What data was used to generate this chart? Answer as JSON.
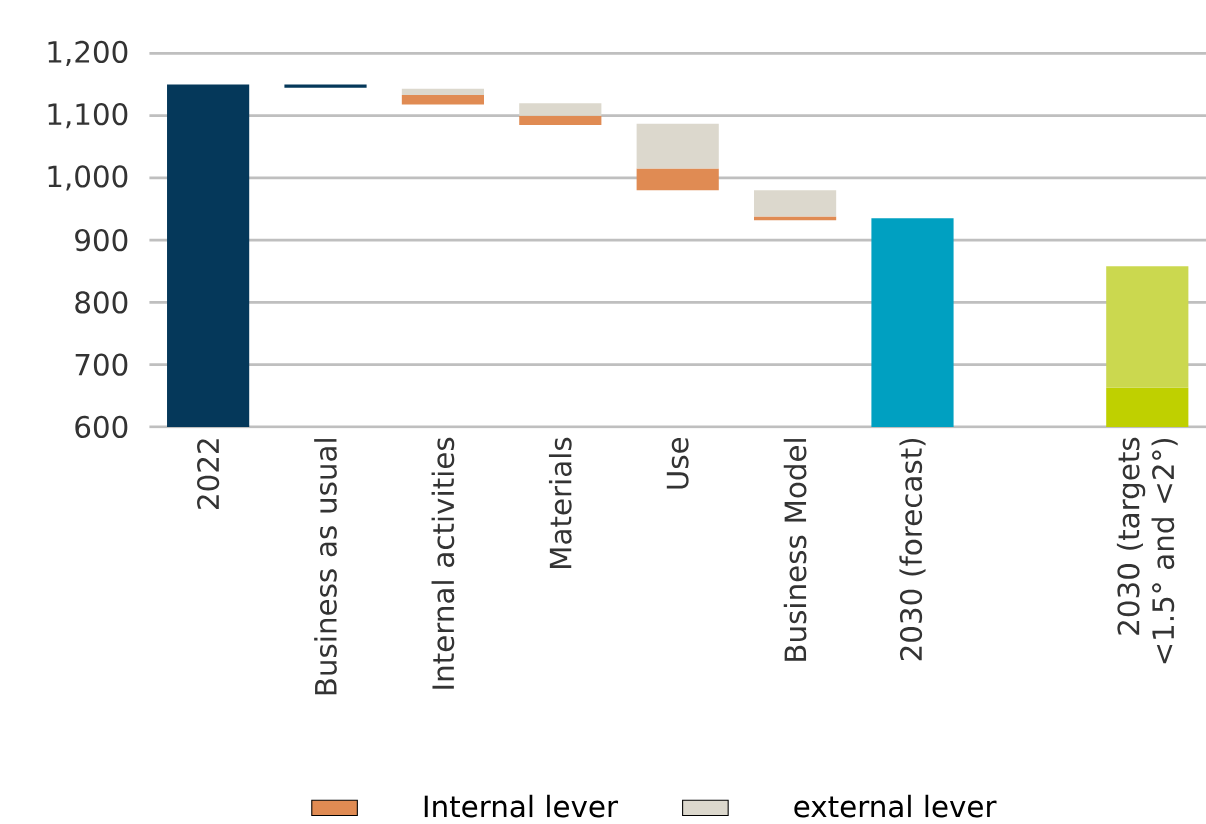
{
  "chart_data": {
    "type": "bar",
    "categories": [
      "2022",
      "Business as usual",
      "Internal activities",
      "Materials",
      "Use",
      "Business Model",
      "2030 (forecast)",
      null,
      "2030 (targets <1.5° and <2°)"
    ],
    "series": [
      {
        "color": "#05385a",
        "values": [
          1150,
          5,
          null,
          null,
          null,
          null,
          null,
          null,
          null
        ],
        "base": [
          null,
          1145,
          null,
          null,
          null,
          null,
          null,
          null,
          null
        ]
      },
      {
        "name": "Internal lever",
        "color": "#e08b53",
        "values": [
          null,
          null,
          15,
          15,
          35,
          6,
          null,
          null,
          null
        ],
        "base": [
          null,
          null,
          1118,
          1085,
          980,
          932,
          null,
          null,
          null
        ]
      },
      {
        "name": "external lever",
        "color": "#dcd8cd",
        "values": [
          null,
          null,
          10,
          20,
          72,
          42,
          null,
          null,
          null
        ],
        "base": [
          null,
          null,
          1133,
          1100,
          1015,
          938,
          null,
          null,
          null
        ]
      },
      {
        "color": "#00a0c1",
        "values": [
          null,
          null,
          null,
          null,
          null,
          null,
          935,
          null,
          null
        ]
      },
      {
        "color": "#bfd000",
        "values": [
          null,
          null,
          null,
          null,
          null,
          null,
          null,
          null,
          663
        ]
      },
      {
        "color": "#cbd84f",
        "values": [
          null,
          null,
          null,
          null,
          null,
          null,
          null,
          null,
          195
        ],
        "base": [
          null,
          null,
          null,
          null,
          null,
          null,
          null,
          null,
          663
        ]
      }
    ],
    "ylim": [
      600,
      1200
    ],
    "yticks": [
      600,
      700,
      800,
      900,
      {
        "value": 1000,
        "label": "1,000"
      },
      {
        "value": 1100,
        "label": "1,100"
      },
      {
        "value": 1200,
        "label": "1,200"
      }
    ],
    "grid": "y",
    "legend": "bottom"
  }
}
